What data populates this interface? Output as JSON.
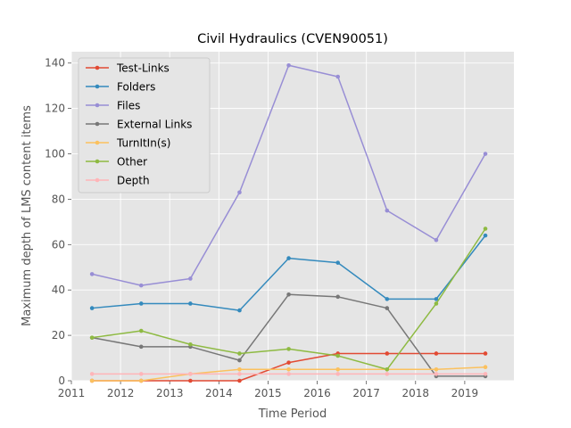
{
  "chart_data": {
    "type": "line",
    "title": "Civil Hydraulics (CVEN90051)",
    "xlabel": "Time Period",
    "ylabel": "Maximum depth of LMS content items",
    "xlim": [
      2011,
      2020
    ],
    "ylim": [
      0,
      145
    ],
    "xticks": [
      2011,
      2012,
      2013,
      2014,
      2015,
      2016,
      2017,
      2018,
      2019
    ],
    "yticks": [
      0,
      20,
      40,
      60,
      80,
      100,
      120,
      140
    ],
    "grid": true,
    "legend_position": "top-left",
    "x": [
      2011.42,
      2012.42,
      2013.42,
      2014.42,
      2015.42,
      2016.42,
      2017.42,
      2018.42,
      2019.42
    ],
    "series": [
      {
        "name": "Test-Links",
        "color": "#E24A33",
        "values": [
          0,
          0,
          0,
          0,
          8,
          12,
          12,
          12,
          12
        ]
      },
      {
        "name": "Folders",
        "color": "#348ABD",
        "values": [
          32,
          34,
          34,
          31,
          54,
          52,
          36,
          36,
          64
        ]
      },
      {
        "name": "Files",
        "color": "#988ED5",
        "values": [
          47,
          42,
          45,
          83,
          139,
          134,
          75,
          62,
          100
        ]
      },
      {
        "name": "External Links",
        "color": "#777777",
        "values": [
          19,
          15,
          15,
          9,
          38,
          37,
          32,
          2,
          2
        ]
      },
      {
        "name": "TurnItIn(s)",
        "color": "#FBC15E",
        "values": [
          0,
          0,
          3,
          5,
          5,
          5,
          5,
          5,
          6
        ]
      },
      {
        "name": "Other",
        "color": "#8EBA42",
        "values": [
          19,
          22,
          16,
          12,
          14,
          11,
          5,
          34,
          67
        ]
      },
      {
        "name": "Depth",
        "color": "#FFB5B8",
        "values": [
          3,
          3,
          3,
          3,
          3,
          3,
          3,
          3,
          3
        ]
      }
    ]
  }
}
